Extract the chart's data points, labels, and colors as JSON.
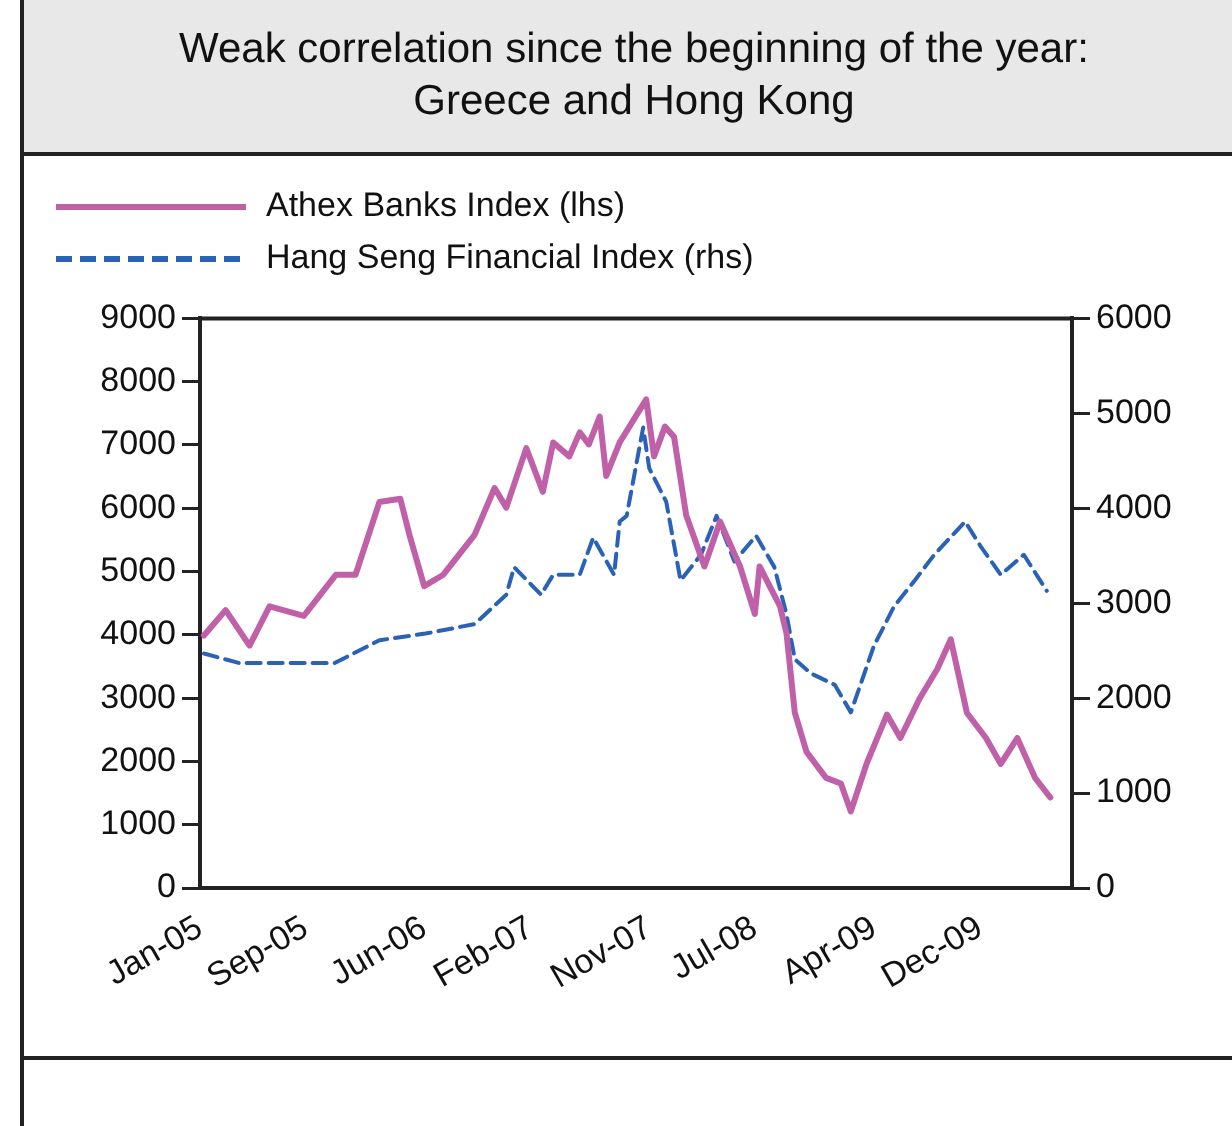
{
  "chart_data": {
    "type": "line",
    "title": "Weak correlation since the beginning of the year: Greece and Hong Kong",
    "xlim": [
      "2005-01-01",
      "2010-07-01"
    ],
    "xticks": [
      {
        "value": "2005-01-01",
        "label": "Jan-05"
      },
      {
        "value": "2005-09-01",
        "label": "Sep-05"
      },
      {
        "value": "2006-06-01",
        "label": "Jun-06"
      },
      {
        "value": "2007-02-01",
        "label": "Feb-07"
      },
      {
        "value": "2007-11-01",
        "label": "Nov-07"
      },
      {
        "value": "2008-07-01",
        "label": "Jul-08"
      },
      {
        "value": "2009-04-01",
        "label": "Apr-09"
      },
      {
        "value": "2009-12-01",
        "label": "Dec-09"
      }
    ],
    "ylim": [
      0,
      9000
    ],
    "yticks": [
      0,
      1000,
      2000,
      3000,
      4000,
      5000,
      6000,
      7000,
      8000,
      9000
    ],
    "y2lim": [
      0,
      6000
    ],
    "y2ticks": [
      0,
      1000,
      2000,
      3000,
      4000,
      5000,
      6000
    ],
    "grid": false,
    "legend": "top left",
    "series": [
      {
        "name": "Athex Banks Index (lhs)",
        "color": "#c060a8",
        "line_style": "solid",
        "x": [
          "2005-01-10",
          "2005-03-01",
          "2005-04-25",
          "2005-06-10",
          "2005-08-28",
          "2005-11-10",
          "2005-12-25",
          "2006-02-18",
          "2006-04-07",
          "2006-04-28",
          "2006-06-01",
          "2006-07-15",
          "2006-09-25",
          "2006-11-10",
          "2006-12-07",
          "2007-01-22",
          "2007-03-01",
          "2007-03-25",
          "2007-05-01",
          "2007-05-25",
          "2007-06-15",
          "2007-07-10",
          "2007-07-25",
          "2007-08-25",
          "2007-10-25",
          "2007-11-12",
          "2007-12-07",
          "2007-12-28",
          "2008-01-25",
          "2008-03-07",
          "2008-04-12",
          "2008-05-28",
          "2008-07-01",
          "2008-07-12",
          "2008-08-28",
          "2008-09-12",
          "2008-10-01",
          "2008-10-28",
          "2008-12-12",
          "2009-01-15",
          "2009-02-07",
          "2009-03-15",
          "2009-05-01",
          "2009-06-01",
          "2009-07-15",
          "2009-08-25",
          "2009-09-25",
          "2009-11-01",
          "2009-12-15",
          "2010-01-18",
          "2010-02-25",
          "2010-04-07",
          "2010-05-12"
        ],
        "values": [
          3990,
          4390,
          3830,
          4450,
          4300,
          4950,
          4950,
          6100,
          6150,
          5580,
          4770,
          4950,
          5580,
          6320,
          6010,
          6950,
          6260,
          7040,
          6820,
          7200,
          7010,
          7450,
          6510,
          7040,
          7720,
          6820,
          7290,
          7130,
          5890,
          5080,
          5790,
          5080,
          4330,
          5080,
          4450,
          4020,
          2770,
          2150,
          1740,
          1650,
          1210,
          1960,
          2740,
          2370,
          2990,
          3460,
          3930,
          2770,
          2370,
          1960,
          2370,
          1740,
          1430
        ]
      },
      {
        "name": "Hang Seng Financial Index (rhs)",
        "color": "#2a62b8",
        "axis": "y2",
        "line_style": "dashed",
        "x": [
          "2005-01-10",
          "2005-04-01",
          "2005-11-07",
          "2006-02-18",
          "2006-06-04",
          "2006-09-25",
          "2006-12-07",
          "2006-12-25",
          "2007-02-25",
          "2007-03-25",
          "2007-05-25",
          "2007-06-25",
          "2007-08-12",
          "2007-08-25",
          "2007-09-10",
          "2007-10-18",
          "2007-11-01",
          "2007-12-10",
          "2008-01-12",
          "2008-02-28",
          "2008-04-04",
          "2008-05-15",
          "2008-07-04",
          "2008-08-15",
          "2008-09-12",
          "2008-10-01",
          "2008-11-07",
          "2009-01-01",
          "2009-02-07",
          "2009-03-01",
          "2009-04-01",
          "2009-05-18",
          "2009-07-04",
          "2009-08-18",
          "2009-10-28",
          "2009-12-04",
          "2010-01-18",
          "2010-03-12",
          "2010-05-04"
        ],
        "values": [
          2470,
          2370,
          2370,
          2610,
          2680,
          2780,
          3090,
          3380,
          3090,
          3300,
          3300,
          3690,
          3300,
          3860,
          3920,
          4850,
          4420,
          4070,
          3240,
          3510,
          3920,
          3440,
          3710,
          3380,
          2880,
          2410,
          2260,
          2140,
          1850,
          2140,
          2550,
          2970,
          3240,
          3510,
          3860,
          3590,
          3300,
          3510,
          3130
        ]
      }
    ]
  }
}
